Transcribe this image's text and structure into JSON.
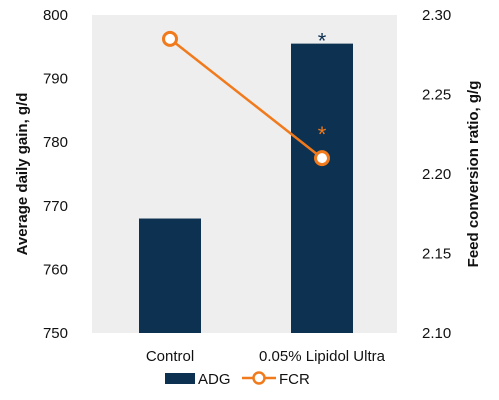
{
  "chart_data": {
    "type": "bar+line",
    "categories": [
      "Control",
      "0.05% Lipidol Ultra"
    ],
    "series": [
      {
        "name": "ADG",
        "kind": "bar",
        "axis": "left",
        "values": [
          768,
          795.5
        ],
        "color": "#0d3151"
      },
      {
        "name": "FCR",
        "kind": "line",
        "axis": "right",
        "values": [
          2.285,
          2.21
        ],
        "color": "#f07a1c",
        "marker": "open-circle"
      }
    ],
    "ylabel_left": "Average daily gain, g/d",
    "ylabel_right": "Feed conversion ratio, g/g",
    "ylim_left": [
      750,
      800
    ],
    "yticks_left": [
      750,
      760,
      770,
      780,
      790,
      800
    ],
    "ytick_labels_left": [
      "750",
      "760",
      "770",
      "780",
      "790",
      "800"
    ],
    "ylim_right": [
      2.1,
      2.3
    ],
    "yticks_right": [
      2.1,
      2.15,
      2.2,
      2.25,
      2.3
    ],
    "ytick_labels_right": [
      "2.10",
      "2.15",
      "2.20",
      "2.25",
      "2.30"
    ],
    "annotations": [
      {
        "text": "*",
        "category": "0.05% Lipidol Ultra",
        "series": "ADG",
        "color": "#0d3151"
      },
      {
        "text": "*",
        "category": "0.05% Lipidol Ultra",
        "series": "FCR",
        "color": "#f07a1c"
      }
    ],
    "plot_background": "#eeeeee",
    "grid": false,
    "legend_placement": "bottom"
  }
}
